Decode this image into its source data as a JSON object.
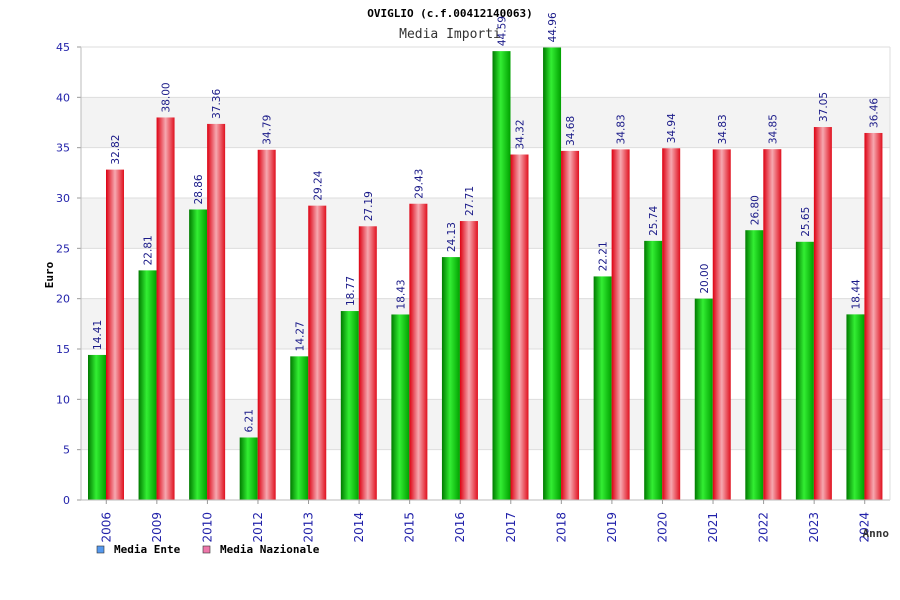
{
  "chart_data": {
    "type": "bar",
    "title": "OVIGLIO (c.f.00412140063)",
    "subtitle": "Media Importi",
    "xlabel": "Anno",
    "ylabel": "Euro",
    "ylim": [
      0,
      45
    ],
    "ytick_step": 5,
    "grid": true,
    "legend_position": "bottom-left",
    "categories": [
      "2006",
      "2009",
      "2010",
      "2012",
      "2013",
      "2014",
      "2015",
      "2016",
      "2017",
      "2018",
      "2019",
      "2020",
      "2021",
      "2022",
      "2023",
      "2024"
    ],
    "series": [
      {
        "name": "Media Ente",
        "legend_color": "#5599ee",
        "bar_color": "#00aa00",
        "values": [
          14.41,
          22.81,
          28.86,
          6.21,
          14.27,
          18.77,
          18.43,
          24.13,
          44.59,
          44.96,
          22.21,
          25.74,
          20.0,
          26.8,
          25.65,
          18.44
        ],
        "labels": [
          "14.41",
          "22.81",
          "28.86",
          "6.21",
          "14.27",
          "18.77",
          "18.43",
          "24.13",
          "44.59",
          "44.96",
          "22.21",
          "25.74",
          "20.00",
          "26.80",
          "25.65",
          "18.44"
        ]
      },
      {
        "name": "Media Nazionale",
        "legend_color": "#ee77aa",
        "bar_color": "#ee2233",
        "values": [
          32.82,
          38.0,
          37.36,
          34.79,
          29.24,
          27.19,
          29.43,
          27.71,
          34.32,
          34.68,
          34.83,
          34.94,
          34.83,
          34.85,
          37.05,
          36.46
        ],
        "labels": [
          "32.82",
          "38.00",
          "37.36",
          "34.79",
          "29.24",
          "27.19",
          "29.43",
          "27.71",
          "34.32",
          "34.68",
          "34.83",
          "34.94",
          "34.83",
          "34.85",
          "37.05",
          "36.46"
        ]
      }
    ]
  }
}
